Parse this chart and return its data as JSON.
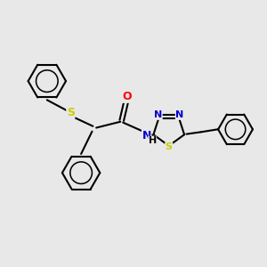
{
  "background_color": "#e8e8e8",
  "bond_color": "#000000",
  "line_width": 1.5,
  "atom_colors": {
    "S": "#cccc00",
    "N": "#0000cc",
    "O": "#ff0000",
    "C": "#000000"
  },
  "font_size": 8,
  "fig_size": [
    3.0,
    3.0
  ],
  "dpi": 100
}
